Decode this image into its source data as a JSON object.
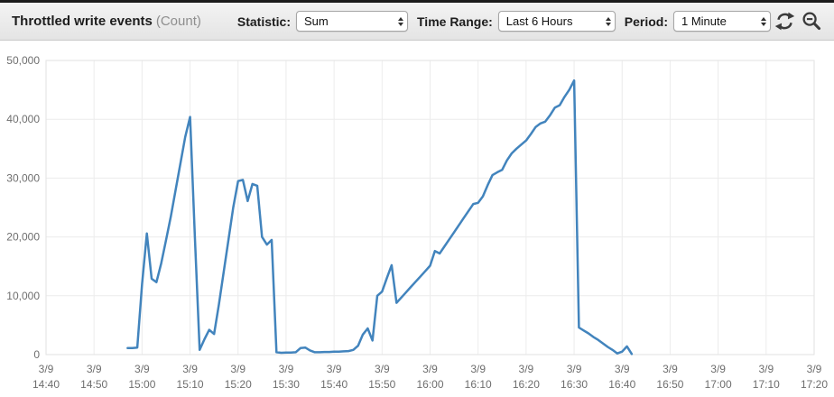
{
  "header": {
    "title": "Throttled write events",
    "title_unit": "(Count)",
    "statistic_label": "Statistic:",
    "statistic_value": "Sum",
    "time_range_label": "Time Range:",
    "time_range_value": "Last 6 Hours",
    "period_label": "Period:",
    "period_value": "1 Minute"
  },
  "colors": {
    "line": "#4284bd",
    "grid": "#ececec",
    "plot_border": "#e2e2e2",
    "axis_bottom": "#d8d8d8",
    "tick_text": "#6e6e6e",
    "icon": "#3a3a3a"
  },
  "chart_data": {
    "type": "line",
    "title": "Throttled write events (Count)",
    "statistic": "Sum",
    "period": "1 Minute",
    "time_range": "Last 6 Hours",
    "ylabel": "Count",
    "ylim": [
      0,
      50000
    ],
    "grid": true,
    "legend_position": "none",
    "y_ticks": [
      {
        "label": "0",
        "value": 0
      },
      {
        "label": "10,000",
        "value": 10000
      },
      {
        "label": "20,000",
        "value": 20000
      },
      {
        "label": "30,000",
        "value": 30000
      },
      {
        "label": "40,000",
        "value": 40000
      },
      {
        "label": "50,000",
        "value": 50000
      }
    ],
    "x_ticks": [
      {
        "date": "3/9",
        "time": "14:40"
      },
      {
        "date": "3/9",
        "time": "14:50"
      },
      {
        "date": "3/9",
        "time": "15:00"
      },
      {
        "date": "3/9",
        "time": "15:10"
      },
      {
        "date": "3/9",
        "time": "15:20"
      },
      {
        "date": "3/9",
        "time": "15:30"
      },
      {
        "date": "3/9",
        "time": "15:40"
      },
      {
        "date": "3/9",
        "time": "15:50"
      },
      {
        "date": "3/9",
        "time": "16:00"
      },
      {
        "date": "3/9",
        "time": "16:10"
      },
      {
        "date": "3/9",
        "time": "16:20"
      },
      {
        "date": "3/9",
        "time": "16:30"
      },
      {
        "date": "3/9",
        "time": "16:40"
      },
      {
        "date": "3/9",
        "time": "16:50"
      },
      {
        "date": "3/9",
        "time": "17:00"
      },
      {
        "date": "3/9",
        "time": "17:10"
      },
      {
        "date": "3/9",
        "time": "17:20"
      }
    ],
    "x_range": [
      "14:40",
      "17:20"
    ],
    "series": [
      {
        "name": "Throttled write events",
        "color": "#4284bd",
        "points": [
          [
            "14:57",
            1100
          ],
          [
            "14:58",
            1100
          ],
          [
            "14:59",
            1200
          ],
          [
            "15:00",
            12000
          ],
          [
            "15:01",
            20600
          ],
          [
            "15:02",
            12900
          ],
          [
            "15:03",
            12300
          ],
          [
            "15:04",
            15500
          ],
          [
            "15:05",
            19500
          ],
          [
            "15:06",
            23500
          ],
          [
            "15:07",
            28000
          ],
          [
            "15:08",
            32500
          ],
          [
            "15:09",
            37000
          ],
          [
            "15:10",
            40400
          ],
          [
            "15:11",
            20000
          ],
          [
            "15:12",
            800
          ],
          [
            "15:13",
            2600
          ],
          [
            "15:14",
            4200
          ],
          [
            "15:15",
            3500
          ],
          [
            "15:16",
            8500
          ],
          [
            "15:17",
            14000
          ],
          [
            "15:18",
            19500
          ],
          [
            "15:19",
            25000
          ],
          [
            "15:20",
            29500
          ],
          [
            "15:21",
            29700
          ],
          [
            "15:22",
            26100
          ],
          [
            "15:23",
            29000
          ],
          [
            "15:24",
            28700
          ],
          [
            "15:25",
            20000
          ],
          [
            "15:26",
            18700
          ],
          [
            "15:27",
            19500
          ],
          [
            "15:28",
            400
          ],
          [
            "15:29",
            300
          ],
          [
            "15:30",
            350
          ],
          [
            "15:31",
            350
          ],
          [
            "15:32",
            400
          ],
          [
            "15:33",
            1100
          ],
          [
            "15:34",
            1200
          ],
          [
            "15:35",
            700
          ],
          [
            "15:36",
            400
          ],
          [
            "15:37",
            400
          ],
          [
            "15:38",
            450
          ],
          [
            "15:39",
            450
          ],
          [
            "15:40",
            500
          ],
          [
            "15:41",
            500
          ],
          [
            "15:42",
            550
          ],
          [
            "15:43",
            600
          ],
          [
            "15:44",
            800
          ],
          [
            "15:45",
            1500
          ],
          [
            "15:46",
            3400
          ],
          [
            "15:47",
            4450
          ],
          [
            "15:48",
            2400
          ],
          [
            "15:49",
            10000
          ],
          [
            "15:50",
            10700
          ],
          [
            "15:51",
            13000
          ],
          [
            "15:52",
            15200
          ],
          [
            "15:53",
            8800
          ],
          [
            "15:54",
            9700
          ],
          [
            "15:55",
            10600
          ],
          [
            "15:56",
            11500
          ],
          [
            "15:57",
            12400
          ],
          [
            "15:58",
            13300
          ],
          [
            "15:59",
            14200
          ],
          [
            "16:00",
            15100
          ],
          [
            "16:01",
            17600
          ],
          [
            "16:02",
            17200
          ],
          [
            "16:03",
            18400
          ],
          [
            "16:04",
            19600
          ],
          [
            "16:05",
            20800
          ],
          [
            "16:06",
            22000
          ],
          [
            "16:07",
            23200
          ],
          [
            "16:08",
            24400
          ],
          [
            "16:09",
            25600
          ],
          [
            "16:10",
            25800
          ],
          [
            "16:11",
            26900
          ],
          [
            "16:12",
            28800
          ],
          [
            "16:13",
            30500
          ],
          [
            "16:14",
            31000
          ],
          [
            "16:15",
            31400
          ],
          [
            "16:16",
            33000
          ],
          [
            "16:17",
            34200
          ],
          [
            "16:18",
            35000
          ],
          [
            "16:19",
            35700
          ],
          [
            "16:20",
            36400
          ],
          [
            "16:21",
            37500
          ],
          [
            "16:22",
            38700
          ],
          [
            "16:23",
            39300
          ],
          [
            "16:24",
            39600
          ],
          [
            "16:25",
            40700
          ],
          [
            "16:26",
            42000
          ],
          [
            "16:27",
            42400
          ],
          [
            "16:28",
            43800
          ],
          [
            "16:29",
            45000
          ],
          [
            "16:30",
            46600
          ],
          [
            "16:31",
            4600
          ],
          [
            "16:32",
            4100
          ],
          [
            "16:33",
            3600
          ],
          [
            "16:34",
            3000
          ],
          [
            "16:35",
            2500
          ],
          [
            "16:36",
            1900
          ],
          [
            "16:37",
            1300
          ],
          [
            "16:38",
            800
          ],
          [
            "16:39",
            200
          ],
          [
            "16:40",
            500
          ],
          [
            "16:41",
            1400
          ],
          [
            "16:42",
            100
          ]
        ]
      }
    ]
  }
}
